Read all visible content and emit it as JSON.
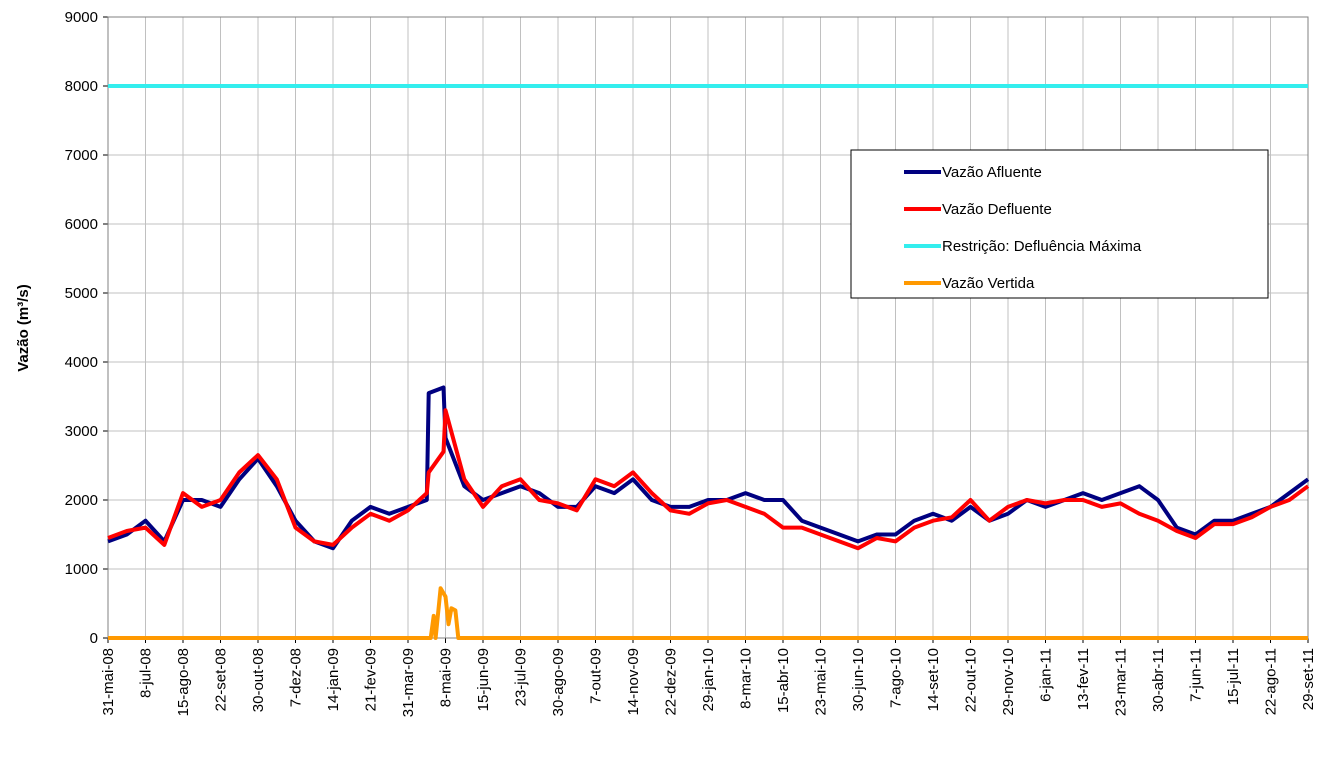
{
  "chart_data": {
    "type": "line",
    "ylabel": "Vazão (m³/s)",
    "ylim": [
      0,
      9000
    ],
    "yticks": [
      0,
      1000,
      2000,
      3000,
      4000,
      5000,
      6000,
      7000,
      8000,
      9000
    ],
    "xlim": [
      "2008-05-31",
      "2011-09-29"
    ],
    "xticks": [
      {
        "value": "2008-05-31",
        "label": "31-mai-08"
      },
      {
        "value": "2008-07-08",
        "label": "8-jul-08"
      },
      {
        "value": "2008-08-15",
        "label": "15-ago-08"
      },
      {
        "value": "2008-09-22",
        "label": "22-set-08"
      },
      {
        "value": "2008-10-30",
        "label": "30-out-08"
      },
      {
        "value": "2008-12-07",
        "label": "7-dez-08"
      },
      {
        "value": "2009-01-14",
        "label": "14-jan-09"
      },
      {
        "value": "2009-02-21",
        "label": "21-fev-09"
      },
      {
        "value": "2009-03-31",
        "label": "31-mar-09"
      },
      {
        "value": "2009-05-08",
        "label": "8-mai-09"
      },
      {
        "value": "2009-06-15",
        "label": "15-jun-09"
      },
      {
        "value": "2009-07-23",
        "label": "23-jul-09"
      },
      {
        "value": "2009-08-30",
        "label": "30-ago-09"
      },
      {
        "value": "2009-10-07",
        "label": "7-out-09"
      },
      {
        "value": "2009-11-14",
        "label": "14-nov-09"
      },
      {
        "value": "2009-12-22",
        "label": "22-dez-09"
      },
      {
        "value": "2010-01-29",
        "label": "29-jan-10"
      },
      {
        "value": "2010-03-08",
        "label": "8-mar-10"
      },
      {
        "value": "2010-04-15",
        "label": "15-abr-10"
      },
      {
        "value": "2010-05-23",
        "label": "23-mai-10"
      },
      {
        "value": "2010-06-30",
        "label": "30-jun-10"
      },
      {
        "value": "2010-08-07",
        "label": "7-ago-10"
      },
      {
        "value": "2010-09-14",
        "label": "14-set-10"
      },
      {
        "value": "2010-10-22",
        "label": "22-out-10"
      },
      {
        "value": "2010-11-29",
        "label": "29-nov-10"
      },
      {
        "value": "2011-01-06",
        "label": "6-jan-11"
      },
      {
        "value": "2011-02-13",
        "label": "13-fev-11"
      },
      {
        "value": "2011-03-23",
        "label": "23-mar-11"
      },
      {
        "value": "2011-04-30",
        "label": "30-abr-11"
      },
      {
        "value": "2011-06-07",
        "label": "7-jun-11"
      },
      {
        "value": "2011-07-15",
        "label": "15-jul-11"
      },
      {
        "value": "2011-08-22",
        "label": "22-ago-11"
      },
      {
        "value": "2011-09-29",
        "label": "29-set-11"
      }
    ],
    "grid": true,
    "legend": "right",
    "x": [
      "2008-05-31",
      "2008-06-19",
      "2008-07-08",
      "2008-07-27",
      "2008-08-15",
      "2008-09-03",
      "2008-09-22",
      "2008-10-11",
      "2008-10-30",
      "2008-11-18",
      "2008-12-07",
      "2008-12-26",
      "2009-01-14",
      "2009-02-02",
      "2009-02-21",
      "2009-03-12",
      "2009-03-31",
      "2009-04-19",
      "2009-04-21",
      "2009-05-06",
      "2009-05-08",
      "2009-05-27",
      "2009-06-15",
      "2009-07-04",
      "2009-07-23",
      "2009-08-11",
      "2009-08-30",
      "2009-09-18",
      "2009-10-07",
      "2009-10-26",
      "2009-11-14",
      "2009-12-03",
      "2009-12-22",
      "2010-01-10",
      "2010-01-29",
      "2010-02-17",
      "2010-03-08",
      "2010-03-27",
      "2010-04-15",
      "2010-05-04",
      "2010-05-23",
      "2010-06-11",
      "2010-06-30",
      "2010-07-19",
      "2010-08-07",
      "2010-08-26",
      "2010-09-14",
      "2010-10-03",
      "2010-10-22",
      "2010-11-10",
      "2010-11-29",
      "2010-12-18",
      "2011-01-06",
      "2011-01-25",
      "2011-02-13",
      "2011-03-04",
      "2011-03-23",
      "2011-04-11",
      "2011-04-30",
      "2011-05-19",
      "2011-06-07",
      "2011-06-26",
      "2011-07-15",
      "2011-08-03",
      "2011-08-22",
      "2011-09-10",
      "2011-09-29"
    ],
    "series": [
      {
        "name": "Vazão Afluente",
        "color": "#000080",
        "values": [
          1400,
          1500,
          1700,
          1400,
          2000,
          2000,
          1900,
          2300,
          2600,
          2200,
          1700,
          1400,
          1300,
          1700,
          1900,
          1800,
          1900,
          2000,
          3550,
          3630,
          2900,
          2200,
          2000,
          2100,
          2200,
          2100,
          1900,
          1900,
          2200,
          2100,
          2300,
          2000,
          1900,
          1900,
          2000,
          2000,
          2100,
          2000,
          2000,
          1700,
          1600,
          1500,
          1400,
          1500,
          1500,
          1700,
          1800,
          1700,
          1900,
          1700,
          1800,
          2000,
          1900,
          2000,
          2100,
          2000,
          2100,
          2200,
          2000,
          1600,
          1500,
          1700,
          1700,
          1800,
          1900,
          2100,
          2300
        ]
      },
      {
        "name": "Vazão Defluente",
        "color": "#ff0000",
        "values": [
          1450,
          1550,
          1600,
          1350,
          2100,
          1900,
          2000,
          2400,
          2650,
          2300,
          1600,
          1400,
          1350,
          1600,
          1800,
          1700,
          1850,
          2100,
          2400,
          2700,
          3300,
          2300,
          1900,
          2200,
          2300,
          2000,
          1950,
          1850,
          2300,
          2200,
          2400,
          2100,
          1850,
          1800,
          1950,
          2000,
          1900,
          1800,
          1600,
          1600,
          1500,
          1400,
          1300,
          1450,
          1400,
          1600,
          1700,
          1750,
          2000,
          1700,
          1900,
          2000,
          1950,
          2000,
          2000,
          1900,
          1950,
          1800,
          1700,
          1550,
          1450,
          1650,
          1650,
          1750,
          1900,
          2000,
          2200
        ]
      },
      {
        "name": "Restrição: Defluência Máxima",
        "color": "#33eeee",
        "x": [
          "2008-05-31",
          "2011-09-29"
        ],
        "values": [
          8000,
          8000
        ]
      },
      {
        "name": "Vazão Vertida",
        "color": "#ff9900",
        "x": [
          "2008-05-31",
          "2009-04-23",
          "2009-04-26",
          "2009-04-28",
          "2009-05-03",
          "2009-05-08",
          "2009-05-11",
          "2009-05-14",
          "2009-05-18",
          "2009-05-21",
          "2011-09-29"
        ],
        "values": [
          0,
          0,
          320,
          0,
          720,
          600,
          200,
          430,
          400,
          0,
          0
        ]
      }
    ]
  }
}
